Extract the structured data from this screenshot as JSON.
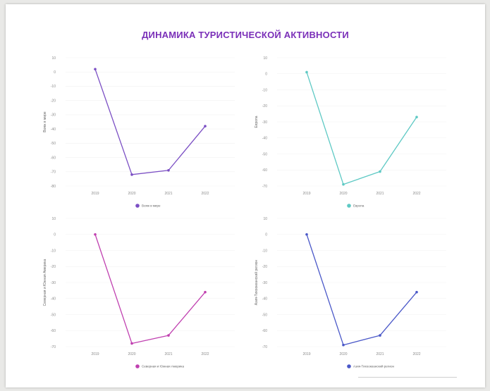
{
  "title": "ДИНАМИКА ТУРИСТИЧЕСКОЙ АКТИВНОСТИ",
  "chart_data": [
    {
      "type": "line",
      "ylabel": "Вояж в мире",
      "x": [
        "2019",
        "2020",
        "2021",
        "2022"
      ],
      "yticks": [
        "10",
        "0",
        "-10",
        "-20",
        "-30",
        "-40",
        "-50",
        "-60",
        "-70",
        "-80"
      ],
      "ylim": [
        -80,
        10
      ],
      "series": [
        {
          "name": "Вояж в мире",
          "values": [
            2,
            -72,
            -69,
            -38
          ],
          "color": "#7b4fc4"
        }
      ],
      "legend": "bottom"
    },
    {
      "type": "line",
      "ylabel": "Европа",
      "x": [
        "2019",
        "2020",
        "2021",
        "2022"
      ],
      "yticks": [
        "10",
        "0",
        "-10",
        "-20",
        "-30",
        "-40",
        "-50",
        "-60",
        "-70"
      ],
      "ylim": [
        -70,
        10
      ],
      "series": [
        {
          "name": "Европа",
          "values": [
            1,
            -69,
            -61,
            -27
          ],
          "color": "#5ec9c4"
        }
      ],
      "legend": "bottom"
    },
    {
      "type": "line",
      "ylabel": "Северная и Южная Америка",
      "x": [
        "2019",
        "2020",
        "2021",
        "2022"
      ],
      "yticks": [
        "10",
        "0",
        "-10",
        "-20",
        "-30",
        "-40",
        "-50",
        "-60",
        "-70"
      ],
      "ylim": [
        -70,
        10
      ],
      "series": [
        {
          "name": "Северная и Южная Америка",
          "values": [
            0,
            -68,
            -63,
            -36
          ],
          "color": "#c040b0"
        }
      ],
      "legend": "bottom"
    },
    {
      "type": "line",
      "ylabel": "Азия-Тихоокеанский регион",
      "x": [
        "2019",
        "2020",
        "2021",
        "2022"
      ],
      "yticks": [
        "10",
        "0",
        "-10",
        "-20",
        "-30",
        "-40",
        "-50",
        "-60",
        "-70"
      ],
      "ylim": [
        -70,
        10
      ],
      "series": [
        {
          "name": "Азия-Тихоокеанский регион",
          "values": [
            0,
            -69,
            -63,
            -36
          ],
          "color": "#4a58c8"
        }
      ],
      "legend": "bottom"
    }
  ]
}
